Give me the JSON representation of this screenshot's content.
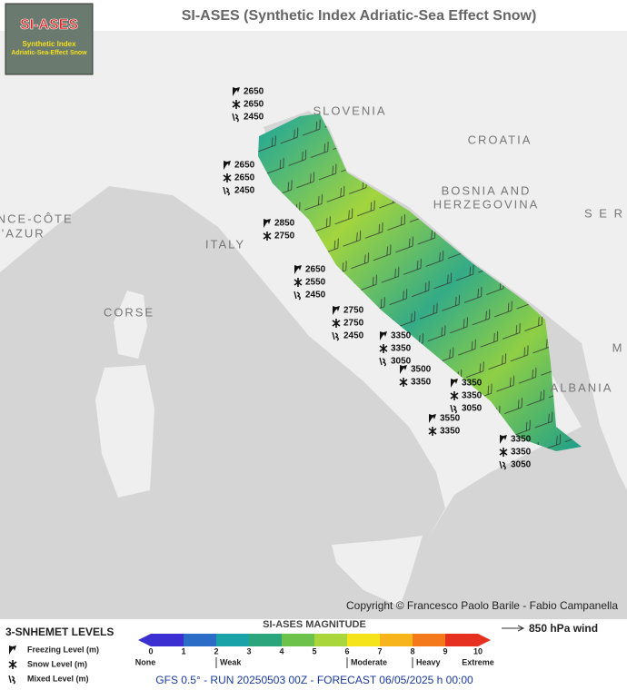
{
  "header": {
    "title": "SI-ASES (Synthetic Index Adriatic-Sea Effect Snow)"
  },
  "logo": {
    "title": "SI-ASES",
    "line1": "Synthetic Index",
    "line2": "Adriatic-Sea-Effect Snow"
  },
  "countries": [
    "SLOVENIA",
    "CROATIA",
    "BOSNIA AND",
    "HERZEGOVINA",
    "S E R",
    "ITALY",
    "CORSE",
    "ALBANIA",
    "OVENCE-CÔTE",
    "D'AZUR",
    "M"
  ],
  "stations": [
    {
      "freezing": 2650,
      "snow": 2650,
      "mixed": 2450
    },
    {
      "freezing": 2650,
      "snow": 2650,
      "mixed": 2450
    },
    {
      "freezing": 2850,
      "snow": 2750
    },
    {
      "freezing": 2650,
      "snow": 2550,
      "mixed": 2450
    },
    {
      "freezing": 2750,
      "snow": 2750,
      "mixed": 2450
    },
    {
      "freezing": 3350,
      "snow": 3350,
      "mixed": 3050
    },
    {
      "freezing": 3500,
      "snow": 3350
    },
    {
      "freezing": 3350,
      "snow": 3350,
      "mixed": 3050
    },
    {
      "freezing": 3550,
      "snow": 3350
    },
    {
      "freezing": 3350,
      "snow": 3350,
      "mixed": 3050
    }
  ],
  "copyright": "Copyright © Francesco Paolo Barile - Fabio Campanella",
  "legend": {
    "levels_title": "3-SNHEMET LEVELS",
    "levels": [
      "Freezing Level (m)",
      "Snow Level (m)",
      "Mixed Level (m)"
    ],
    "magnitude_title": "SI-ASES MAGNITUDE",
    "ticks": [
      0,
      1,
      2,
      3,
      4,
      5,
      6,
      7,
      8,
      9,
      10
    ],
    "colors": [
      "#3b2fd1",
      "#2b6cc6",
      "#19a3a8",
      "#2aa57c",
      "#6cc24b",
      "#a9d63b",
      "#f5e41b",
      "#f7b41b",
      "#f4791b",
      "#e63020"
    ],
    "descriptors": [
      "None",
      "Weak",
      "Moderate",
      "Heavy",
      "Extreme"
    ],
    "wind": "850 hPa wind"
  },
  "footer": "GFS 0.5° - RUN 20250503 00Z - FORECAST 06/05/2025 h 00:00"
}
